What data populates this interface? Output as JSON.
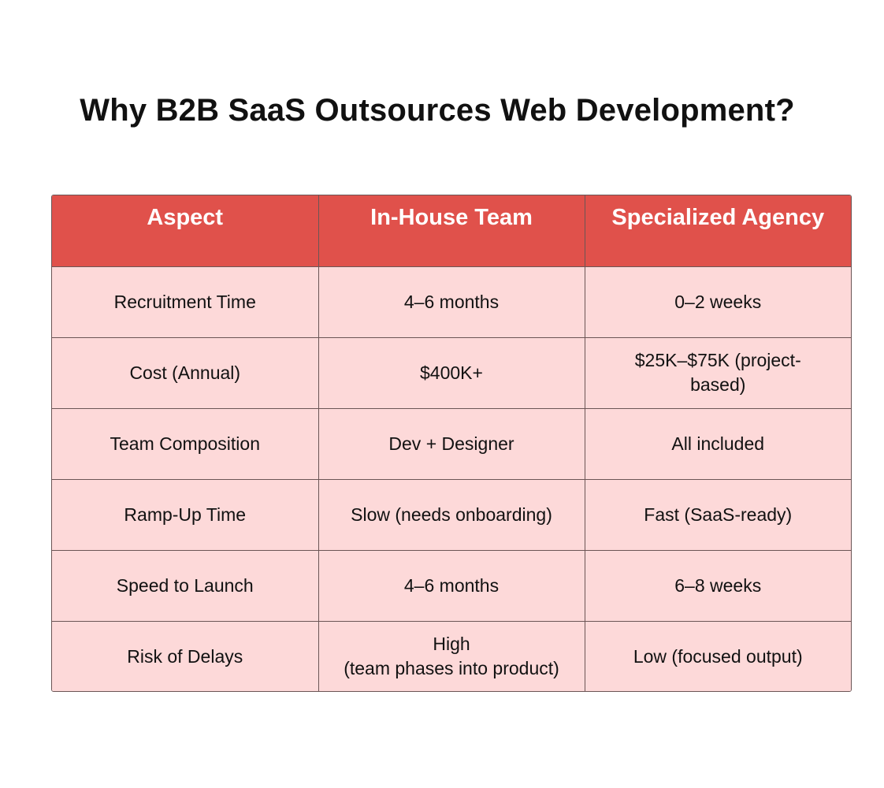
{
  "title": "Why B2B SaaS Outsources Web Development?",
  "chart_data": {
    "type": "table",
    "title": "Why B2B SaaS Outsources Web Development?",
    "columns": [
      "Aspect",
      "In-House Team",
      "Specialized Agency"
    ],
    "rows": [
      [
        "Recruitment Time",
        "4–6 months",
        "0–2 weeks"
      ],
      [
        "Cost (Annual)",
        "$400K+",
        "$25K–$75K (project-\nbased)"
      ],
      [
        "Team Composition",
        "Dev + Designer",
        "All included"
      ],
      [
        "Ramp-Up Time",
        "Slow (needs onboarding)",
        "Fast (SaaS-ready)"
      ],
      [
        "Speed to Launch",
        "4–6 months",
        "6–8 weeks"
      ],
      [
        "Risk of Delays",
        "High\n(team phases into product)",
        "Low (focused output)"
      ]
    ]
  },
  "colors": {
    "header_bg": "#e0514b",
    "header_text": "#ffffff",
    "cell_bg": "#fdd9d9",
    "border": "#6b5555"
  }
}
